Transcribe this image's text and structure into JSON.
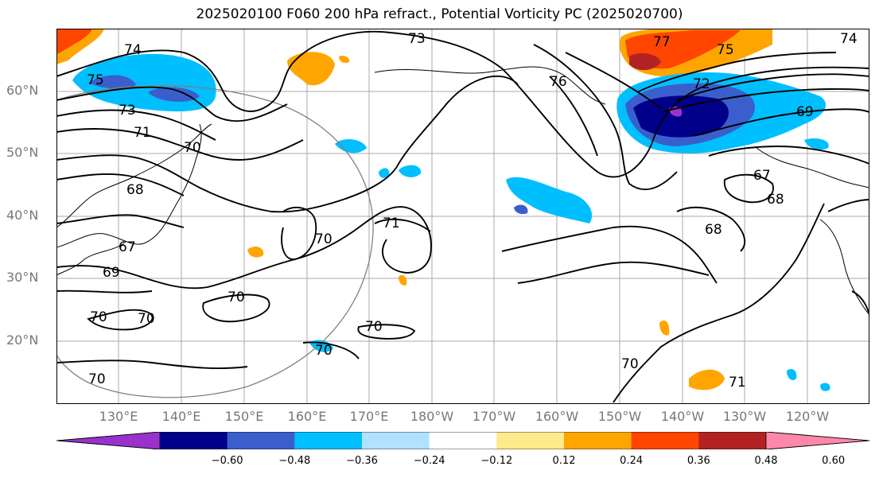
{
  "title": "2025020100 F060 200 hPa refract., Potential Vorticity PC (2025020700)",
  "lat_labels": [
    "60°N",
    "50°N",
    "40°N",
    "30°N",
    "20°N"
  ],
  "lon_labels": [
    "130°E",
    "140°E",
    "150°E",
    "160°E",
    "170°E",
    "180°W",
    "170°W",
    "160°W",
    "150°W",
    "140°W",
    "130°W",
    "120°W"
  ],
  "contour_labels": [
    "74",
    "75",
    "73",
    "71",
    "70",
    "68",
    "67",
    "69",
    "70",
    "70",
    "70",
    "70",
    "73",
    "77",
    "74",
    "75",
    "76",
    "72",
    "69",
    "67",
    "68",
    "71",
    "68",
    "70",
    "71",
    "70",
    "70",
    "70"
  ],
  "colorbar": {
    "colors": [
      "#9932cc",
      "#00008b",
      "#3a5fcd",
      "#00bfff",
      "#b0e2ff",
      "#ffffff",
      "#ffea8a",
      "#ffa500",
      "#ff4500",
      "#b22222",
      "#ff88aa"
    ],
    "ticks": [
      "−0.60",
      "−0.48",
      "−0.36",
      "−0.24",
      "−0.12",
      "0.12",
      "0.24",
      "0.36",
      "0.48",
      "0.60"
    ]
  }
}
